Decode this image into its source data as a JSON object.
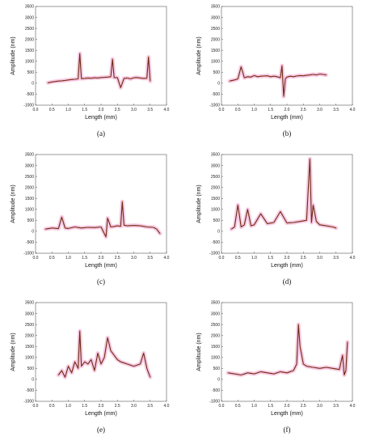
{
  "chart_data": [
    {
      "type": "line",
      "label": "(a)",
      "xlabel": "Length (mm)",
      "ylabel": "Amplitude (nm)",
      "xlim": [
        0,
        4
      ],
      "ylim": [
        -1000,
        3500
      ],
      "xticks": [
        0,
        0.5,
        1,
        1.5,
        2,
        2.5,
        3,
        3.5,
        4
      ],
      "yticks": [
        -1000,
        -500,
        0,
        500,
        1000,
        1500,
        2000,
        2500,
        3000,
        3500
      ],
      "x": [
        0.38,
        0.5,
        0.6,
        0.7,
        0.8,
        0.9,
        1.0,
        1.1,
        1.2,
        1.3,
        1.35,
        1.4,
        1.5,
        1.6,
        1.7,
        1.8,
        1.9,
        2.0,
        2.1,
        2.2,
        2.3,
        2.35,
        2.4,
        2.5,
        2.6,
        2.7,
        2.8,
        2.9,
        3.0,
        3.1,
        3.2,
        3.3,
        3.4,
        3.45,
        3.5
      ],
      "y": [
        20,
        60,
        80,
        100,
        110,
        130,
        150,
        170,
        180,
        200,
        1350,
        210,
        220,
        240,
        230,
        250,
        240,
        260,
        270,
        280,
        300,
        1100,
        260,
        250,
        -200,
        220,
        240,
        200,
        250,
        260,
        240,
        220,
        230,
        1200,
        100
      ]
    },
    {
      "type": "line",
      "label": "(b)",
      "xlabel": "Length (mm)",
      "ylabel": "Amplitude (nm)",
      "xlim": [
        0,
        4
      ],
      "ylim": [
        -1000,
        3500
      ],
      "xticks": [
        0,
        0.5,
        1,
        1.5,
        2,
        2.5,
        3,
        3.5,
        4
      ],
      "yticks": [
        -1000,
        -500,
        0,
        500,
        1000,
        1500,
        2000,
        2500,
        3000,
        3500
      ],
      "x": [
        0.25,
        0.4,
        0.5,
        0.6,
        0.7,
        0.8,
        0.9,
        1.0,
        1.1,
        1.2,
        1.3,
        1.4,
        1.5,
        1.6,
        1.7,
        1.8,
        1.85,
        1.9,
        1.95,
        2.0,
        2.1,
        2.2,
        2.3,
        2.4,
        2.5,
        2.6,
        2.7,
        2.8,
        2.9,
        3.0,
        3.1,
        3.2
      ],
      "y": [
        100,
        150,
        200,
        750,
        250,
        300,
        280,
        350,
        300,
        320,
        330,
        340,
        300,
        320,
        300,
        250,
        800,
        -600,
        200,
        280,
        320,
        300,
        330,
        350,
        340,
        360,
        380,
        400,
        380,
        420,
        400,
        380
      ]
    },
    {
      "type": "line",
      "label": "(c)",
      "xlabel": "Length (mm)",
      "ylabel": "Amplitude (nm)",
      "xlim": [
        0,
        4
      ],
      "ylim": [
        -1000,
        3500
      ],
      "xticks": [
        0,
        0.5,
        1,
        1.5,
        2,
        2.5,
        3,
        3.5,
        4
      ],
      "yticks": [
        -1000,
        -500,
        0,
        500,
        1000,
        1500,
        2000,
        2500,
        3000,
        3500
      ],
      "x": [
        0.3,
        0.5,
        0.7,
        0.8,
        0.9,
        1.0,
        1.2,
        1.4,
        1.6,
        1.8,
        2.0,
        2.15,
        2.2,
        2.3,
        2.4,
        2.5,
        2.6,
        2.65,
        2.7,
        2.8,
        3.0,
        3.2,
        3.4,
        3.6,
        3.7,
        3.8
      ],
      "y": [
        100,
        150,
        120,
        650,
        150,
        130,
        200,
        150,
        180,
        170,
        200,
        -250,
        600,
        200,
        220,
        250,
        230,
        1350,
        280,
        250,
        270,
        250,
        200,
        180,
        100,
        -100
      ]
    },
    {
      "type": "line",
      "label": "(d)",
      "xlabel": "Length (mm)",
      "ylabel": "Amplitude (nm)",
      "xlim": [
        0,
        4
      ],
      "ylim": [
        -1000,
        3500
      ],
      "xticks": [
        0,
        0.5,
        1,
        1.5,
        2,
        2.5,
        3,
        3.5,
        4
      ],
      "yticks": [
        -1000,
        -500,
        0,
        500,
        1000,
        1500,
        2000,
        2500,
        3000,
        3500
      ],
      "x": [
        0.3,
        0.4,
        0.5,
        0.6,
        0.7,
        0.8,
        0.9,
        1.0,
        1.2,
        1.4,
        1.6,
        1.8,
        2.0,
        2.2,
        2.4,
        2.6,
        2.7,
        2.75,
        2.8,
        2.9,
        3.0,
        3.2,
        3.4,
        3.5
      ],
      "y": [
        100,
        200,
        1200,
        200,
        300,
        1000,
        250,
        300,
        800,
        350,
        400,
        900,
        380,
        400,
        450,
        500,
        3300,
        400,
        1200,
        450,
        300,
        250,
        200,
        150
      ]
    },
    {
      "type": "line",
      "label": "(e)",
      "xlabel": "Length (mm)",
      "ylabel": "Amplitude (nm)",
      "xlim": [
        0,
        4
      ],
      "ylim": [
        -1000,
        3500
      ],
      "xticks": [
        0,
        0.5,
        1,
        1.5,
        2,
        2.5,
        3,
        3.5,
        4
      ],
      "yticks": [
        -1000,
        -500,
        0,
        500,
        1000,
        1500,
        2000,
        2500,
        3000,
        3500
      ],
      "x": [
        0.7,
        0.8,
        0.9,
        1.0,
        1.1,
        1.2,
        1.3,
        1.35,
        1.4,
        1.5,
        1.6,
        1.7,
        1.8,
        1.9,
        2.0,
        2.1,
        2.2,
        2.3,
        2.4,
        2.5,
        2.6,
        2.8,
        3.0,
        3.2,
        3.3,
        3.4,
        3.5
      ],
      "y": [
        200,
        400,
        100,
        600,
        300,
        800,
        500,
        2200,
        600,
        800,
        700,
        900,
        400,
        1200,
        700,
        1000,
        1900,
        1300,
        1100,
        900,
        800,
        700,
        600,
        700,
        1200,
        500,
        100
      ]
    },
    {
      "type": "line",
      "label": "(f)",
      "xlabel": "Length (mm)",
      "ylabel": "Amplitude (nm)",
      "xlim": [
        0,
        4
      ],
      "ylim": [
        -1000,
        3500
      ],
      "xticks": [
        0,
        0.5,
        1,
        1.5,
        2,
        2.5,
        3,
        3.5,
        4
      ],
      "yticks": [
        -1000,
        -500,
        0,
        500,
        1000,
        1500,
        2000,
        2500,
        3000,
        3500
      ],
      "x": [
        0.2,
        0.4,
        0.6,
        0.8,
        1.0,
        1.2,
        1.4,
        1.6,
        1.8,
        2.0,
        2.2,
        2.3,
        2.35,
        2.4,
        2.5,
        2.6,
        2.8,
        3.0,
        3.2,
        3.4,
        3.6,
        3.7,
        3.75,
        3.8,
        3.85
      ],
      "y": [
        300,
        250,
        200,
        300,
        250,
        350,
        300,
        250,
        350,
        300,
        400,
        700,
        2500,
        1500,
        700,
        600,
        550,
        500,
        550,
        500,
        450,
        1100,
        200,
        400,
        1700
      ]
    }
  ]
}
